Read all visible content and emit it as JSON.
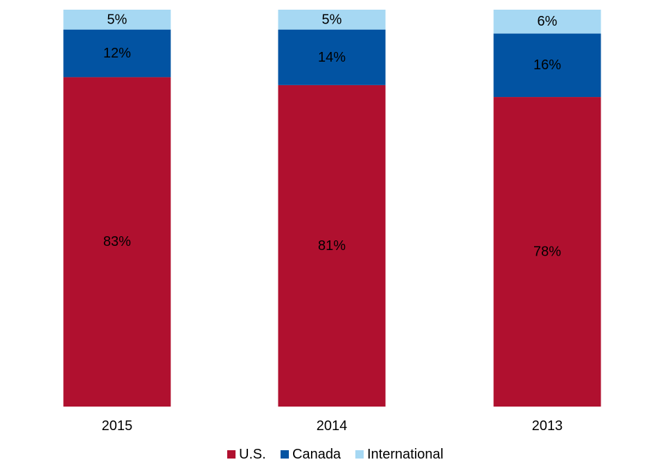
{
  "chart_data": {
    "type": "bar",
    "stacked": true,
    "percent_stacked": true,
    "categories": [
      "2015",
      "2014",
      "2013"
    ],
    "series": [
      {
        "name": "U.S.",
        "values": [
          83,
          81,
          78
        ],
        "labels": [
          "83%",
          "81%",
          "78%"
        ],
        "color": "#B0102F"
      },
      {
        "name": "Canada",
        "values": [
          12,
          14,
          16
        ],
        "labels": [
          "12%",
          "14%",
          "16%"
        ],
        "color": "#0253A2"
      },
      {
        "name": "International",
        "values": [
          5,
          5,
          6
        ],
        "labels": [
          "5%",
          "5%",
          "6%"
        ],
        "color": "#A6D8F3"
      }
    ],
    "ylim": [
      0,
      100
    ],
    "grid": false,
    "legend_position": "bottom"
  }
}
